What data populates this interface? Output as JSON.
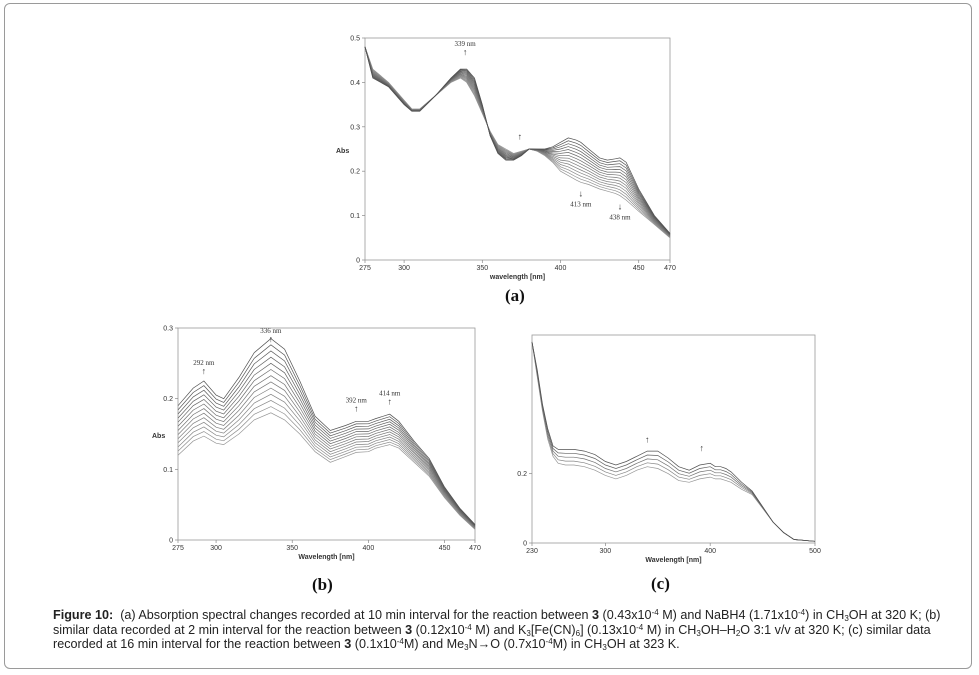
{
  "figure": {
    "label": "Figure 10:",
    "caption_parts": {
      "a": "(a) Absorption spectral changes recorded at 10 min interval for the reaction between",
      "a_cmpd": "3",
      "a2": "(0.43x10",
      "a_exp": "-4",
      "a3": "M) and NaBH4 (1.71x10",
      "a3_exp": "-4",
      "a4": ") in CH",
      "a4_sub": "3",
      "a5": "OH at 320 K; (b) similar data recorded at 2 min interval for the reaction between",
      "b_cmpd": "3",
      "b2": "(0.12x10",
      "b2_exp": "-4",
      "b3": "M) and K",
      "b3_sub": "3",
      "b4": "[Fe(CN)",
      "b4_sub": "6",
      "b5": "] (0.13x10",
      "b5_exp": "-4",
      "b6": "M) in CH",
      "b6_sub": "3",
      "b7": "OH–H",
      "b7_sub": "2",
      "b8": "O 3:1 v/v at 320 K; (c) similar data recorded at 16 min interval for the reaction between",
      "c_cmpd": "3",
      "c2": "(0.1x10",
      "c2_exp": "-4",
      "c3": "M) and Me",
      "c3_sub": "3",
      "c4": "N→O (0.7x10",
      "c4_exp": "-4",
      "c5": "M) in CH",
      "c5_sub": "3",
      "c6": "OH at 323 K."
    }
  },
  "chart_data": [
    {
      "id": "a",
      "panel_label": "(a)",
      "type": "line",
      "xlabel": "wavelength [nm]",
      "ylabel": "Abs",
      "xlim": [
        275,
        470
      ],
      "ylim": [
        0,
        0.5
      ],
      "xticks": [
        275,
        300,
        350,
        400,
        450,
        470
      ],
      "xtick_labels": [
        "275",
        "300",
        "350",
        "400",
        "450",
        "470"
      ],
      "yticks": [
        0,
        0.1,
        0.2,
        0.3,
        0.4,
        0.5
      ],
      "ytick_labels": [
        "0",
        "0.1",
        "0.2",
        "0.3",
        "0.4",
        "0.5"
      ],
      "grid": false,
      "n_curves": 14,
      "x": [
        275,
        280,
        290,
        300,
        305,
        310,
        320,
        330,
        336,
        340,
        345,
        350,
        355,
        360,
        365,
        370,
        375,
        380,
        385,
        390,
        395,
        400,
        405,
        410,
        413,
        418,
        425,
        430,
        435,
        438,
        442,
        450,
        460,
        470
      ],
      "series": [
        {
          "name": "first scan",
          "values": [
            0.48,
            0.43,
            0.4,
            0.36,
            0.34,
            0.34,
            0.37,
            0.4,
            0.41,
            0.4,
            0.37,
            0.33,
            0.29,
            0.26,
            0.25,
            0.24,
            0.245,
            0.25,
            0.245,
            0.235,
            0.22,
            0.2,
            0.19,
            0.18,
            0.175,
            0.17,
            0.16,
            0.155,
            0.15,
            0.145,
            0.135,
            0.11,
            0.08,
            0.05
          ]
        },
        {
          "name": "last scan",
          "values": [
            0.48,
            0.41,
            0.39,
            0.35,
            0.335,
            0.335,
            0.37,
            0.41,
            0.43,
            0.43,
            0.41,
            0.35,
            0.28,
            0.24,
            0.225,
            0.225,
            0.235,
            0.25,
            0.25,
            0.25,
            0.255,
            0.265,
            0.275,
            0.27,
            0.265,
            0.25,
            0.23,
            0.225,
            0.228,
            0.23,
            0.22,
            0.16,
            0.1,
            0.06
          ]
        }
      ],
      "annotations": [
        {
          "text": "339 nm",
          "x": 339,
          "arrow": "up"
        },
        {
          "text": "",
          "x": 374,
          "arrow": "up"
        },
        {
          "text": "413 nm",
          "x": 413,
          "arrow": "down"
        },
        {
          "text": "438 nm",
          "x": 438,
          "arrow": "down"
        }
      ]
    },
    {
      "id": "b",
      "panel_label": "(b)",
      "type": "line",
      "xlabel": "Wavelength [nm]",
      "ylabel": "Abs",
      "xlim": [
        275,
        470
      ],
      "ylim": [
        0,
        0.3
      ],
      "xticks": [
        275,
        300,
        350,
        400,
        450,
        470
      ],
      "xtick_labels": [
        "275",
        "300",
        "350",
        "400",
        "450",
        "470"
      ],
      "yticks": [
        0,
        0.1,
        0.2,
        0.3
      ],
      "ytick_labels": [
        "0",
        "0.1",
        "0.2",
        "0.3"
      ],
      "grid": false,
      "n_curves": 13,
      "x": [
        275,
        285,
        292,
        300,
        305,
        315,
        325,
        336,
        345,
        355,
        365,
        375,
        385,
        392,
        400,
        405,
        414,
        420,
        430,
        440,
        450,
        460,
        470
      ],
      "series": [
        {
          "name": "first scan",
          "values": [
            0.12,
            0.14,
            0.147,
            0.137,
            0.135,
            0.15,
            0.17,
            0.18,
            0.17,
            0.15,
            0.125,
            0.11,
            0.118,
            0.124,
            0.125,
            0.13,
            0.135,
            0.13,
            0.11,
            0.09,
            0.06,
            0.035,
            0.015
          ]
        },
        {
          "name": "last scan",
          "values": [
            0.19,
            0.215,
            0.225,
            0.205,
            0.2,
            0.23,
            0.265,
            0.285,
            0.27,
            0.225,
            0.175,
            0.155,
            0.162,
            0.168,
            0.168,
            0.172,
            0.178,
            0.168,
            0.14,
            0.115,
            0.075,
            0.045,
            0.022
          ]
        }
      ],
      "annotations": [
        {
          "text": "292 nm",
          "x": 292,
          "arrow": "up"
        },
        {
          "text": "336 nm",
          "x": 336,
          "arrow": "up"
        },
        {
          "text": "392 nm",
          "x": 392,
          "arrow": "up"
        },
        {
          "text": "414 nm",
          "x": 414,
          "arrow": "up"
        }
      ]
    },
    {
      "id": "c",
      "panel_label": "(c)",
      "type": "line",
      "xlabel": "Wavelength [nm]",
      "ylabel": "",
      "xlim": [
        230,
        500
      ],
      "ylim": [
        0,
        0.6
      ],
      "xticks": [
        230,
        300,
        400,
        500
      ],
      "xtick_labels": [
        "230",
        "300",
        "400",
        "500"
      ],
      "yticks": [
        0,
        0.2
      ],
      "ytick_labels": [
        "0",
        "0.2"
      ],
      "grid": false,
      "n_curves": 5,
      "x": [
        230,
        235,
        240,
        245,
        250,
        255,
        262,
        270,
        280,
        290,
        300,
        310,
        320,
        330,
        340,
        350,
        360,
        370,
        380,
        390,
        400,
        405,
        410,
        415,
        420,
        430,
        440,
        450,
        460,
        470,
        480,
        500
      ],
      "series": [
        {
          "name": "first scan",
          "values": [
            0.58,
            0.48,
            0.38,
            0.3,
            0.25,
            0.23,
            0.225,
            0.225,
            0.22,
            0.21,
            0.195,
            0.185,
            0.195,
            0.21,
            0.22,
            0.215,
            0.2,
            0.18,
            0.175,
            0.185,
            0.19,
            0.185,
            0.185,
            0.18,
            0.175,
            0.155,
            0.14,
            0.1,
            0.06,
            0.03,
            0.01,
            0.005
          ]
        },
        {
          "name": "last scan",
          "values": [
            0.58,
            0.5,
            0.4,
            0.33,
            0.28,
            0.27,
            0.27,
            0.27,
            0.265,
            0.255,
            0.235,
            0.225,
            0.235,
            0.25,
            0.265,
            0.265,
            0.245,
            0.22,
            0.21,
            0.225,
            0.23,
            0.22,
            0.22,
            0.215,
            0.205,
            0.175,
            0.15,
            0.105,
            0.06,
            0.03,
            0.01,
            0.005
          ]
        }
      ],
      "annotations": [
        {
          "text": "",
          "x": 340,
          "arrow": "up"
        },
        {
          "text": "",
          "x": 392,
          "arrow": "up"
        }
      ]
    }
  ]
}
